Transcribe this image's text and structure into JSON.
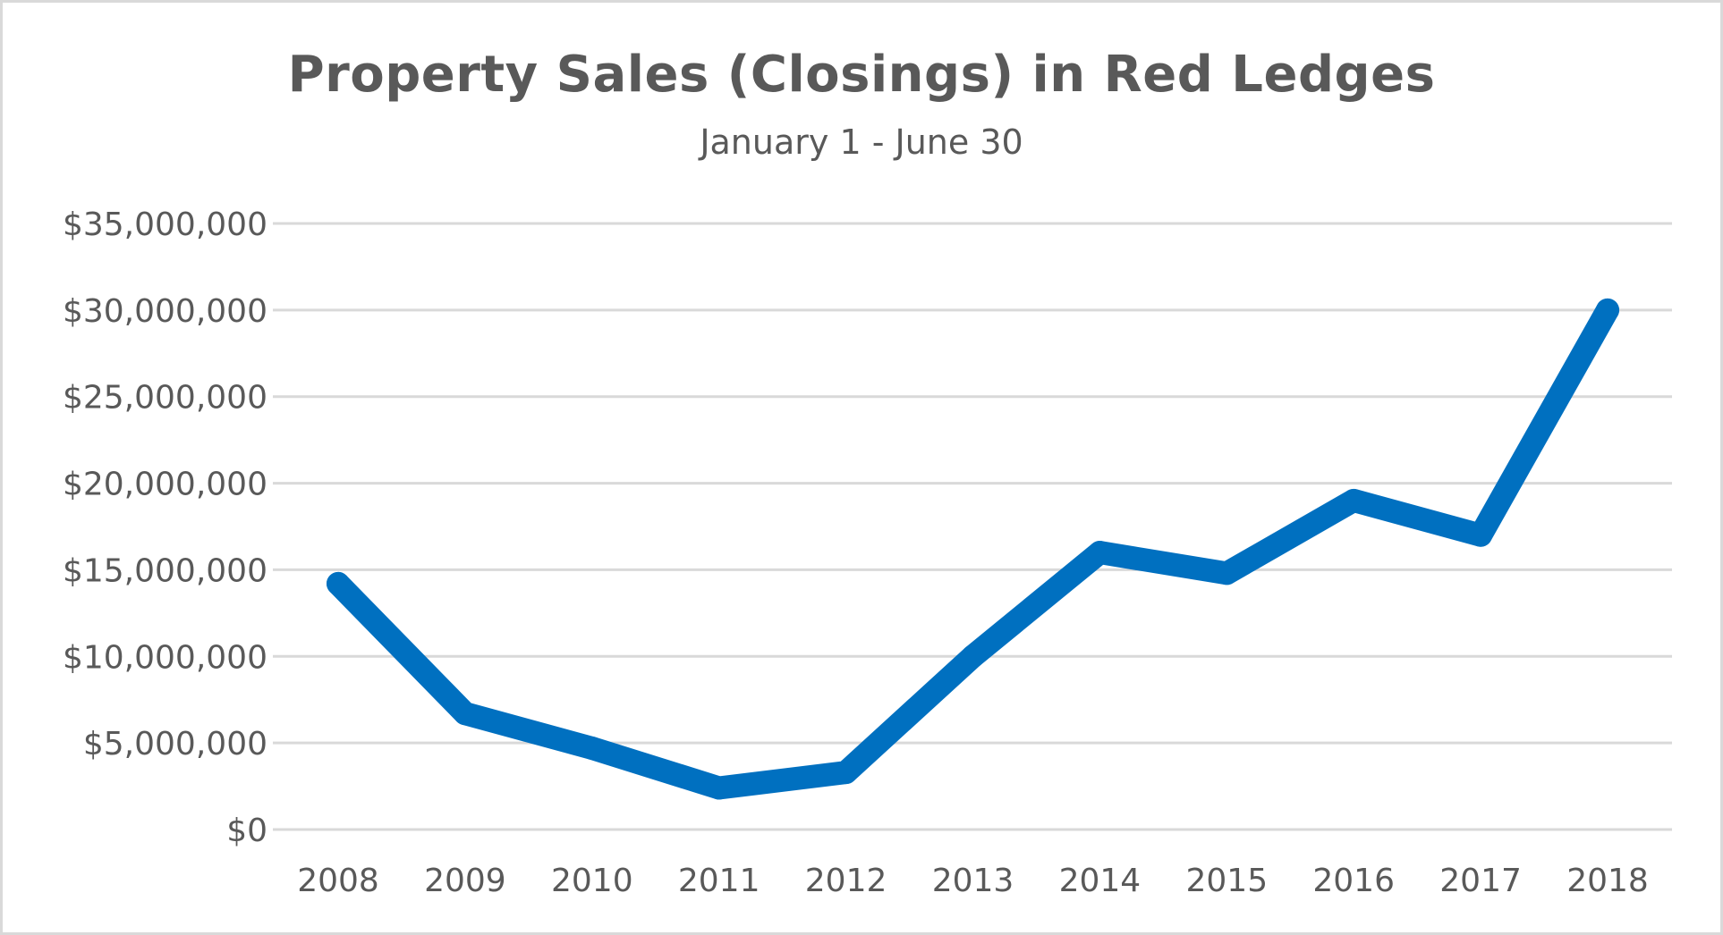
{
  "chart_data": {
    "type": "line",
    "title": "Property Sales (Closings) in Red Ledges",
    "subtitle": "January 1 - June 30",
    "xlabel": "",
    "ylabel": "",
    "x": [
      "2008",
      "2009",
      "2010",
      "2011",
      "2012",
      "2013",
      "2014",
      "2015",
      "2016",
      "2017",
      "2018"
    ],
    "series": [
      {
        "values": [
          14200000,
          6700000,
          4700000,
          2400000,
          3300000,
          10000000,
          16000000,
          14800000,
          19000000,
          17000000,
          30000000
        ],
        "color": "#0070c0"
      }
    ],
    "ylim": [
      0,
      35000000
    ],
    "yticks": [
      0,
      5000000,
      10000000,
      15000000,
      20000000,
      25000000,
      30000000,
      35000000
    ],
    "ytick_labels": [
      "$0",
      "$5,000,000",
      "$10,000,000",
      "$15,000,000",
      "$20,000,000",
      "$25,000,000",
      "$30,000,000",
      "$35,000,000"
    ],
    "grid": true,
    "gridline_color": "#d9d9d9",
    "text_color": "#595959",
    "legend": "none"
  }
}
